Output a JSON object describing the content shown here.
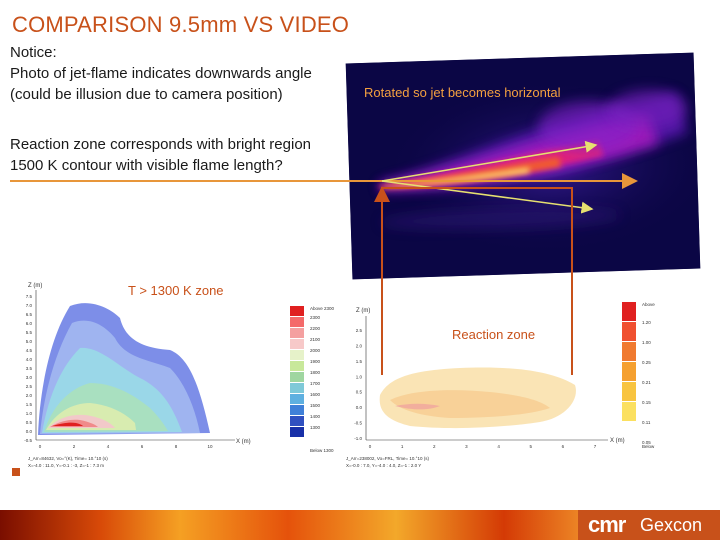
{
  "title": "COMPARISON 9.5mm VS VIDEO",
  "notice_lines": [
    "Notice:",
    "Photo of jet-flame indicates downwards angle",
    "(could be illusion due to camera position)"
  ],
  "reaction_lines": [
    "Reaction zone corresponds with bright region",
    "1500 K contour with visible flame length?"
  ],
  "photo_caption": "Rotated so jet becomes horizontal",
  "zone_label": "T > 1300 K zone",
  "reaction_zone_label": "Reaction zone",
  "left_plot": {
    "axis_title": "Z (m)",
    "y_ticks": [
      "7.5",
      "7.0",
      "6.5",
      "6.0",
      "5.5",
      "5.0",
      "4.5",
      "4.0",
      "3.5",
      "3.0",
      "2.5",
      "2.0",
      "1.5",
      "1.0",
      "0.5",
      "0.0",
      "-0.5"
    ],
    "x_ticks": [
      "0",
      "2",
      "4",
      "6",
      "8",
      "10"
    ],
    "x_axis_label": "X (m)",
    "info_lines": [
      "J_Arr=84632, Vo=°(K), Time= 10.°10 (s)",
      "X=-4.0 : 11.0, Y=-0.1 : -3, Z=-1 : 7.3 m"
    ]
  },
  "left_legend": {
    "header": "Above 2300",
    "levels": [
      "2300",
      "2200",
      "2100",
      "2000",
      "1900",
      "1800",
      "1700",
      "1600",
      "1500",
      "1400",
      "1300"
    ],
    "footer": "Below 1300",
    "colors": [
      "#e02020",
      "#f46a6a",
      "#f4a0a0",
      "#f7c9c9",
      "#e6f2c9",
      "#c8e89a",
      "#9fd6a0",
      "#7fc9d8",
      "#5fb0e0",
      "#4080d8",
      "#3050c0",
      "#1830a8"
    ]
  },
  "right_plot": {
    "axis_title": "Z (m)",
    "y_ticks": [
      "2.5",
      "2.0",
      "1.5",
      "1.0",
      "0.5",
      "0.0",
      "-0.5",
      "-1.0"
    ],
    "x_ticks": [
      "0",
      "1",
      "2",
      "3",
      "4",
      "5",
      "6",
      "7"
    ],
    "x_axis_label": "X (m)",
    "info_lines": [
      "J_Arr=238002, Vo=FRL, Time= 10.°10 (s)",
      "X=-0.0 : 7.0, Y=-4.0 : 4.0, Z=-1 : 2.0 Y"
    ]
  },
  "right_legend": {
    "header": "Above",
    "levels": [
      "1.20",
      "1.00",
      "0.25",
      "0.21",
      "0.15",
      "0.11",
      "0.05"
    ],
    "footer": "Below",
    "colors": [
      "#e02020",
      "#f05030",
      "#f07a30",
      "#f5a030",
      "#f8c440",
      "#fbe060"
    ]
  },
  "logo": {
    "brand": "cmr",
    "name": "Gexcon"
  },
  "colors": {
    "title": "#c8511a",
    "accent": "#c8511a",
    "arrow_orange": "#e8963a"
  }
}
